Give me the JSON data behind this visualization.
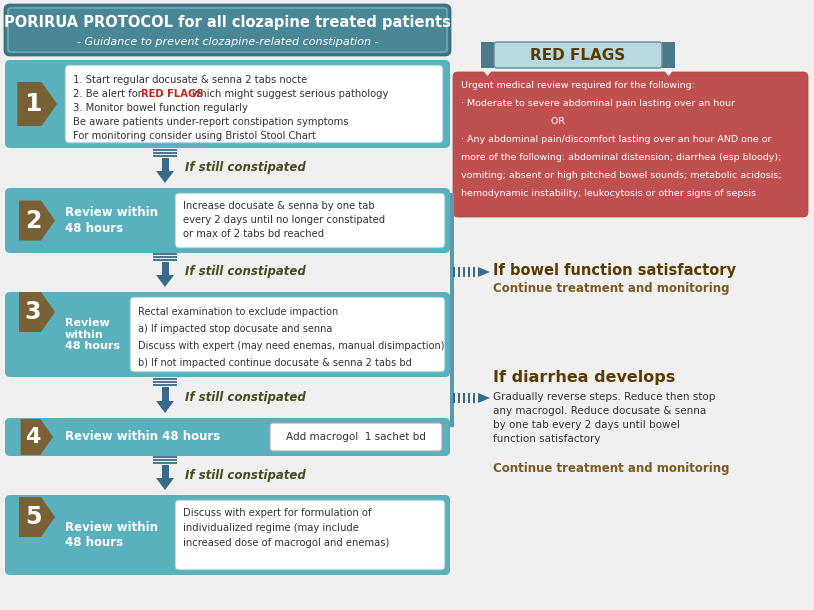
{
  "title_main": "PORIRUA PROTOCOL for all clozapine treated patients",
  "title_sub": "- Guidance to prevent clozapine-related constipation -",
  "title_bg": "#4a8796",
  "title_border": "#3a7080",
  "title_text_color": "#ffffff",
  "step_teal_bg": "#5ab0bc",
  "step_content_bg": "#d4ecf0",
  "step_content_border": "#7ac0ca",
  "num_badge_bg": "#7a6035",
  "num_badge_text": "#ffffff",
  "arrow_color": "#3a6a8a",
  "arrow_label_color": "#4a4a20",
  "constipated_label": "If still constipated",
  "red_flag_banner_bg": "#b8d8e0",
  "red_flag_banner_border": "#5a90a0",
  "red_flag_banner_text": "#5a3a00",
  "red_flag_banner_ear": "#4a7a8a",
  "red_flag_box_bg": "#c05050",
  "red_flag_text": "#ffffff",
  "right_text_dark": "#5a3a00",
  "right_text_brown": "#7a5a20",
  "bg_color": "#f0f0f0",
  "white": "#ffffff",
  "title_main_bold": "PORIRUA PROTOCOL",
  "title_main_rest": " for all clozapine treated patients",
  "red_flag_title": "RED FLAGS",
  "red_flag_body_line1": "Urgent medical review required for the following:",
  "red_flag_body_line2": "· Moderate to severe abdominal pain lasting over an hour",
  "red_flag_body_line3": "                              OR",
  "red_flag_body_line4": "· Any abdominal pain/discomfort lasting over an hour AND one or",
  "red_flag_body_line5": "more of the following: abdominal distension; diarrhea (esp bloody);",
  "red_flag_body_line6": "vomiting; absent or high pitched bowel sounds; metabolic acidosis;",
  "red_flag_body_line7": "hemodynamic instability; leukocytosis or other signs of sepsis",
  "step1_line1": "1. Start regular docusate & senna 2 tabs nocte",
  "step1_line2a": "2. Be alert for ",
  "step1_line2b": "RED FLAGS",
  "step1_line2c": " which might suggest serious pathology",
  "step1_line3": "3. Monitor bowel function regularly",
  "step1_line4": "Be aware patients under-report constipation symptoms",
  "step1_line5": "For monitoring consider using Bristol Stool Chart",
  "step2_label": "Review within\n48 hours",
  "step2_text": "Increase docusate & senna by one tab\nevery 2 days until no longer constipated\nor max of 2 tabs bd reached",
  "step3_label": "Review\nwithin\n48 hours",
  "step3_line1": "Rectal examination to exclude impaction",
  "step3_line2": "a) If impacted stop docusate and senna",
  "step3_line3": "Discuss with expert (may need enemas, manual disimpaction)",
  "step3_line4": "b) If not impacted continue docusate & senna 2 tabs bd",
  "step4_label": "Review within 48 hours",
  "step4_box_text": "Add macrogol  1 sachet bd",
  "step5_label": "Review within\n48 hours",
  "step5_text": "Discuss with expert for formulation of\nindividualized regime (may include\nincreased dose of macrogol and enemas)",
  "right1_title": "If bowel function satisfactory",
  "right1_sub": "Continue treatment and monitoring",
  "right2_title": "If diarrhea develops",
  "right2_body": "Gradually reverse steps. Reduce then stop\nany macrogol. Reduce docusate & senna\nby one tab every 2 days until bowel\nfunction satisfactory",
  "right2_sub": "Continue treatment and monitoring"
}
